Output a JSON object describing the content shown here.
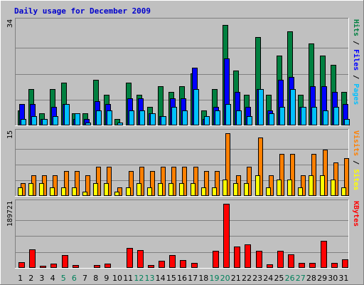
{
  "chart_data": {
    "type": "bar",
    "title": "Daily usage for December 2009",
    "background": "#C0C0C0",
    "categories": [
      "1",
      "2",
      "3",
      "4",
      "5",
      "6",
      "7",
      "8",
      "9",
      "10",
      "11",
      "12",
      "13",
      "14",
      "15",
      "16",
      "17",
      "18",
      "19",
      "20",
      "21",
      "22",
      "23",
      "24",
      "25",
      "26",
      "27",
      "28",
      "29",
      "30",
      "31"
    ],
    "weekend_days": [
      "5",
      "6",
      "12",
      "13",
      "19",
      "20",
      "26",
      "27"
    ],
    "panels": [
      {
        "id": "pages-files-hits",
        "ymax": 34,
        "ymax_label": "34",
        "series": [
          {
            "name": "Hits",
            "color": "#008040",
            "values": [
              5,
              12,
              4,
              12,
              14,
              4,
              4,
              15,
              10,
              2,
              14,
              10,
              6,
              13,
              11,
              13,
              17,
              5,
              12,
              33,
              18,
              10,
              29,
              10,
              23,
              31,
              10,
              27,
              23,
              20,
              11
            ]
          },
          {
            "name": "Files",
            "color": "#0000FF",
            "values": [
              7,
              7,
              2,
              6,
              7,
              2,
              2,
              8,
              7,
              0,
              9,
              9,
              4,
              3,
              9,
              9,
              19,
              2,
              6,
              22,
              11,
              6,
              12,
              5,
              15,
              16,
              6,
              13,
              13,
              11,
              7
            ]
          },
          {
            "name": "Pages",
            "color": "#00C0FF",
            "values": [
              2,
              3,
              2,
              3,
              7,
              4,
              1,
              5,
              5,
              1,
              5,
              5,
              4,
              3,
              6,
              5,
              12,
              3,
              5,
              7,
              5,
              3,
              12,
              4,
              6,
              12,
              6,
              6,
              5,
              6,
              2
            ]
          }
        ],
        "legend": [
          "Pages",
          "Files",
          "Hits"
        ]
      },
      {
        "id": "sites-visits",
        "ymax": 15,
        "ymax_label": "15",
        "series": [
          {
            "name": "Visits",
            "color": "#FF8000",
            "values": [
              3,
              5,
              5,
              5,
              6,
              6,
              5,
              7,
              7,
              2,
              6,
              7,
              6,
              7,
              7,
              7,
              7,
              6,
              6,
              15,
              5,
              7,
              14,
              5,
              10,
              10,
              5,
              10,
              11,
              8,
              9
            ]
          },
          {
            "name": "Sites",
            "color": "#FFFF00",
            "values": [
              2,
              3,
              3,
              2,
              2,
              2,
              1,
              3,
              3,
              1,
              2,
              3,
              2,
              3,
              3,
              3,
              3,
              2,
              2,
              4,
              3,
              3,
              5,
              2,
              4,
              4,
              2,
              5,
              5,
              4,
              2
            ]
          }
        ],
        "legend": [
          "Sites",
          "Visits"
        ]
      },
      {
        "id": "kbytes",
        "ymax": 189721,
        "ymax_label": "189721",
        "series": [
          {
            "name": "KBytes",
            "color": "#FF0000",
            "values": [
              16000,
              55000,
              6000,
              12000,
              38000,
              9000,
              3000,
              8000,
              12000,
              3000,
              60000,
              52000,
              9000,
              22000,
              38000,
              24000,
              15000,
              3000,
              50000,
              189721,
              64000,
              70000,
              50000,
              11000,
              50000,
              40000,
              14000,
              14000,
              80000,
              14000,
              25000
            ]
          }
        ],
        "legend": [
          "KBytes"
        ]
      }
    ]
  }
}
